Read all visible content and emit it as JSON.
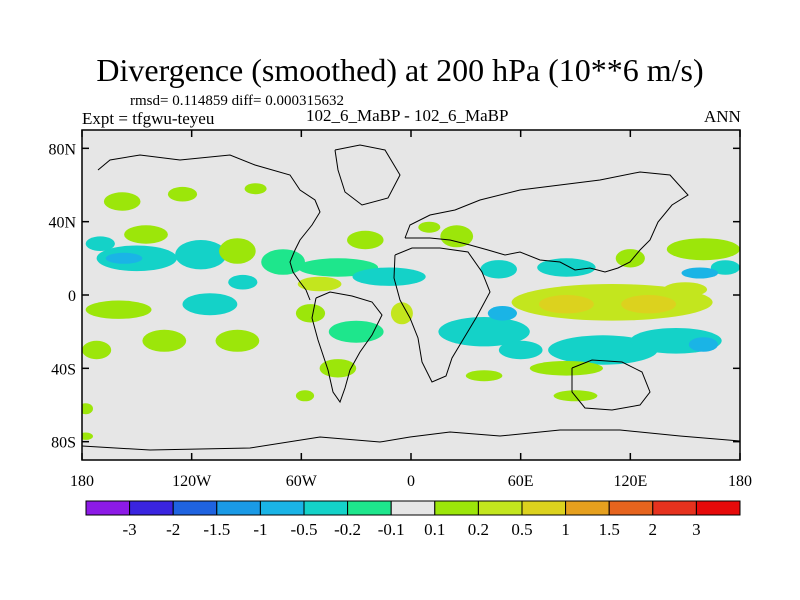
{
  "chart_data": {
    "type": "heatmap",
    "title": "Divergence (smoothed) at 200 hPa (10**6 m/s)",
    "stats_text": "rmsd= 0.114859 diff= 0.000315632",
    "expt_label": "Expt = tfgwu-teyeu",
    "case_label": "102_6_MaBP - 102_6_MaBP",
    "season": "ANN",
    "x_axis": {
      "range": [
        -180,
        180
      ],
      "ticks": [
        {
          "value": -180,
          "label": "180"
        },
        {
          "value": -120,
          "label": "120W"
        },
        {
          "value": -60,
          "label": "60W"
        },
        {
          "value": 0,
          "label": "0"
        },
        {
          "value": 60,
          "label": "60E"
        },
        {
          "value": 120,
          "label": "120E"
        },
        {
          "value": 180,
          "label": "180"
        }
      ]
    },
    "y_axis": {
      "range": [
        -90,
        90
      ],
      "ticks": [
        {
          "value": 80,
          "label": "80N"
        },
        {
          "value": 40,
          "label": "40N"
        },
        {
          "value": 0,
          "label": "0"
        },
        {
          "value": -40,
          "label": "40S"
        },
        {
          "value": -80,
          "label": "80S"
        }
      ]
    },
    "colorbar": {
      "labels": [
        "-3",
        "-2",
        "-1.5",
        "-1",
        "-0.5",
        "-0.2",
        "-0.1",
        "0.1",
        "0.2",
        "0.5",
        "1",
        "1.5",
        "2",
        "3"
      ],
      "colors": [
        "#8c1ae6",
        "#3a24e0",
        "#1f63e0",
        "#1a9ae6",
        "#1ab4e6",
        "#14d2c8",
        "#1ee68c",
        "#e6e6e6",
        "#9ce60a",
        "#c3e61e",
        "#dcd21e",
        "#e6a01e",
        "#e6641e",
        "#e6321e",
        "#e60a0a"
      ]
    },
    "background_color": "#e6e6e6",
    "anomaly_regions": [
      {
        "lon": -158,
        "lat": 51,
        "rlon": 10,
        "rlat": 5,
        "bin": 8
      },
      {
        "lon": -125,
        "lat": 55,
        "rlon": 8,
        "rlat": 4,
        "bin": 8
      },
      {
        "lon": -85,
        "lat": 58,
        "rlon": 6,
        "rlat": 3,
        "bin": 8
      },
      {
        "lon": -145,
        "lat": 33,
        "rlon": 12,
        "rlat": 5,
        "bin": 8
      },
      {
        "lon": -170,
        "lat": 28,
        "rlon": 8,
        "rlat": 4,
        "bin": 5
      },
      {
        "lon": -150,
        "lat": 20,
        "rlon": 22,
        "rlat": 7,
        "bin": 5
      },
      {
        "lon": -157,
        "lat": 20,
        "rlon": 10,
        "rlat": 3,
        "bin": 4
      },
      {
        "lon": -115,
        "lat": 22,
        "rlon": 14,
        "rlat": 8,
        "bin": 5
      },
      {
        "lon": -70,
        "lat": 18,
        "rlon": 12,
        "rlat": 7,
        "bin": 6
      },
      {
        "lon": -95,
        "lat": 24,
        "rlon": 10,
        "rlat": 7,
        "bin": 8
      },
      {
        "lon": -92,
        "lat": 7,
        "rlon": 8,
        "rlat": 4,
        "bin": 5
      },
      {
        "lon": -40,
        "lat": 15,
        "rlon": 22,
        "rlat": 5,
        "bin": 6
      },
      {
        "lon": -50,
        "lat": 6,
        "rlon": 12,
        "rlat": 4,
        "bin": 9
      },
      {
        "lon": -12,
        "lat": 10,
        "rlon": 20,
        "rlat": 5,
        "bin": 5
      },
      {
        "lon": -25,
        "lat": 30,
        "rlon": 10,
        "rlat": 5,
        "bin": 8
      },
      {
        "lon": 25,
        "lat": 32,
        "rlon": 9,
        "rlat": 6,
        "bin": 8
      },
      {
        "lon": 10,
        "lat": 37,
        "rlon": 6,
        "rlat": 3,
        "bin": 8
      },
      {
        "lon": 48,
        "lat": 14,
        "rlon": 10,
        "rlat": 5,
        "bin": 5
      },
      {
        "lon": 85,
        "lat": 15,
        "rlon": 16,
        "rlat": 5,
        "bin": 5
      },
      {
        "lon": 120,
        "lat": 20,
        "rlon": 8,
        "rlat": 5,
        "bin": 8
      },
      {
        "lon": 160,
        "lat": 25,
        "rlon": 20,
        "rlat": 6,
        "bin": 8
      },
      {
        "lon": 172,
        "lat": 15,
        "rlon": 8,
        "rlat": 4,
        "bin": 5
      },
      {
        "lon": 158,
        "lat": 12,
        "rlon": 10,
        "rlat": 3,
        "bin": 4
      },
      {
        "lon": 150,
        "lat": 3,
        "rlon": 12,
        "rlat": 4,
        "bin": 9
      },
      {
        "lon": 110,
        "lat": -4,
        "rlon": 55,
        "rlat": 10,
        "bin": 9
      },
      {
        "lon": 85,
        "lat": -5,
        "rlon": 15,
        "rlat": 5,
        "bin": 10
      },
      {
        "lon": 130,
        "lat": -5,
        "rlon": 15,
        "rlat": 5,
        "bin": 10
      },
      {
        "lon": 105,
        "lat": -30,
        "rlon": 30,
        "rlat": 8,
        "bin": 5
      },
      {
        "lon": 145,
        "lat": -25,
        "rlon": 25,
        "rlat": 7,
        "bin": 5
      },
      {
        "lon": 160,
        "lat": -27,
        "rlon": 8,
        "rlat": 4,
        "bin": 4
      },
      {
        "lon": 85,
        "lat": -40,
        "rlon": 20,
        "rlat": 4,
        "bin": 8
      },
      {
        "lon": 40,
        "lat": -44,
        "rlon": 10,
        "rlat": 3,
        "bin": 8
      },
      {
        "lon": 40,
        "lat": -20,
        "rlon": 25,
        "rlat": 8,
        "bin": 5
      },
      {
        "lon": 60,
        "lat": -30,
        "rlon": 12,
        "rlat": 5,
        "bin": 5
      },
      {
        "lon": 50,
        "lat": -10,
        "rlon": 8,
        "rlat": 4,
        "bin": 4
      },
      {
        "lon": -5,
        "lat": -10,
        "rlon": 6,
        "rlat": 6,
        "bin": 9
      },
      {
        "lon": -30,
        "lat": -20,
        "rlon": 15,
        "rlat": 6,
        "bin": 6
      },
      {
        "lon": -55,
        "lat": -10,
        "rlon": 8,
        "rlat": 5,
        "bin": 8
      },
      {
        "lon": -110,
        "lat": -5,
        "rlon": 15,
        "rlat": 6,
        "bin": 5
      },
      {
        "lon": -160,
        "lat": -8,
        "rlon": 18,
        "rlat": 5,
        "bin": 8
      },
      {
        "lon": -135,
        "lat": -25,
        "rlon": 12,
        "rlat": 6,
        "bin": 8
      },
      {
        "lon": -95,
        "lat": -25,
        "rlon": 12,
        "rlat": 6,
        "bin": 8
      },
      {
        "lon": -172,
        "lat": -30,
        "rlon": 8,
        "rlat": 5,
        "bin": 8
      },
      {
        "lon": -40,
        "lat": -40,
        "rlon": 10,
        "rlat": 5,
        "bin": 8
      },
      {
        "lon": -58,
        "lat": -55,
        "rlon": 5,
        "rlat": 3,
        "bin": 8
      },
      {
        "lon": -178,
        "lat": -62,
        "rlon": 4,
        "rlat": 3,
        "bin": 8
      },
      {
        "lon": -178,
        "lat": -77,
        "rlon": 4,
        "rlat": 2,
        "bin": 8
      },
      {
        "lon": 90,
        "lat": -55,
        "rlon": 12,
        "rlat": 3,
        "bin": 8
      }
    ]
  }
}
